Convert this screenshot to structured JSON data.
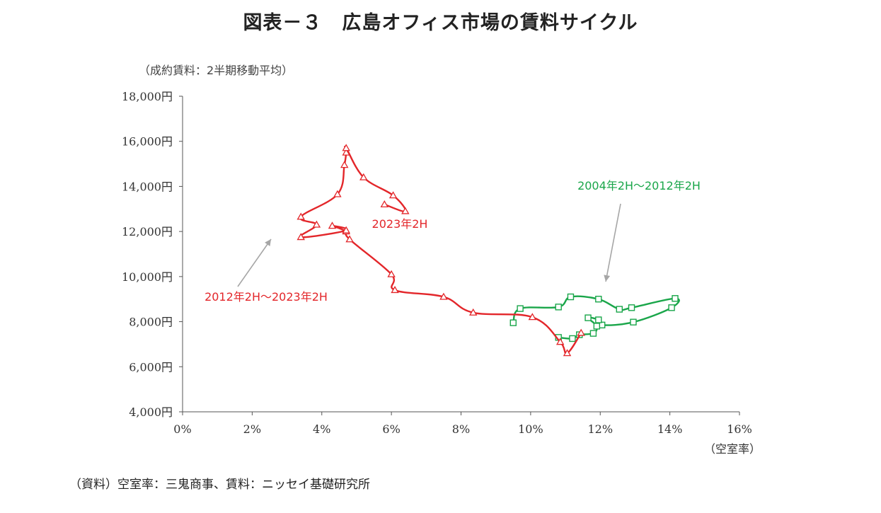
{
  "title": "図表－３　広島オフィス市場の賃料サイクル",
  "unit_note": "（成約賃料：2半期移動平均）",
  "source": "（資料）空室率：三鬼商事、賃料：ニッセイ基礎研究所",
  "chart_data": {
    "type": "scatter",
    "xlabel": "（空室率）",
    "ylabel": "",
    "xlim": [
      0,
      16
    ],
    "ylim": [
      4000,
      18000
    ],
    "x_ticks": [
      "0%",
      "2%",
      "4%",
      "6%",
      "8%",
      "10%",
      "12%",
      "14%",
      "16%"
    ],
    "y_ticks": [
      "4,000円",
      "6,000円",
      "8,000円",
      "10,000円",
      "12,000円",
      "14,000円",
      "16,000円",
      "18,000円"
    ],
    "series": [
      {
        "name": "2004年2H～2012年2H",
        "color": "#1aa64a",
        "marker": "square",
        "points": [
          [
            9.5,
            7950
          ],
          [
            9.7,
            8580
          ],
          [
            10.8,
            8650
          ],
          [
            11.15,
            9100
          ],
          [
            11.95,
            9000
          ],
          [
            12.55,
            8550
          ],
          [
            12.9,
            8620
          ],
          [
            14.15,
            9030
          ],
          [
            14.05,
            8620
          ],
          [
            12.95,
            7980
          ],
          [
            12.05,
            7850
          ],
          [
            11.95,
            8080
          ],
          [
            11.65,
            8170
          ],
          [
            11.9,
            7800
          ],
          [
            11.8,
            7480
          ],
          [
            11.4,
            7420
          ],
          [
            11.2,
            7250
          ],
          [
            10.8,
            7300
          ]
        ]
      },
      {
        "name": "2012年2H～2023年2H",
        "color": "#e3262a",
        "marker": "triangle",
        "points": [
          [
            11.45,
            7500
          ],
          [
            11.05,
            6600
          ],
          [
            10.85,
            7100
          ],
          [
            10.05,
            8200
          ],
          [
            8.35,
            8400
          ],
          [
            7.5,
            9100
          ],
          [
            6.1,
            9400
          ],
          [
            6.0,
            10100
          ],
          [
            4.8,
            11650
          ],
          [
            4.7,
            12000
          ],
          [
            4.3,
            12250
          ],
          [
            4.7,
            12050
          ],
          [
            3.4,
            11750
          ],
          [
            3.85,
            12300
          ],
          [
            3.4,
            12650
          ],
          [
            4.45,
            13650
          ],
          [
            4.65,
            14950
          ],
          [
            4.7,
            15500
          ],
          [
            4.7,
            15700
          ],
          [
            5.2,
            14400
          ],
          [
            6.05,
            13600
          ],
          [
            6.4,
            12900
          ],
          [
            5.8,
            13200
          ]
        ]
      }
    ],
    "annotations": [
      {
        "text": "2004年2H～2012年2H",
        "color": "#1aa64a"
      },
      {
        "text": "2012年2H～2023年2H",
        "color": "#e3262a"
      },
      {
        "text": "2023年2H",
        "color": "#e3262a"
      }
    ]
  }
}
